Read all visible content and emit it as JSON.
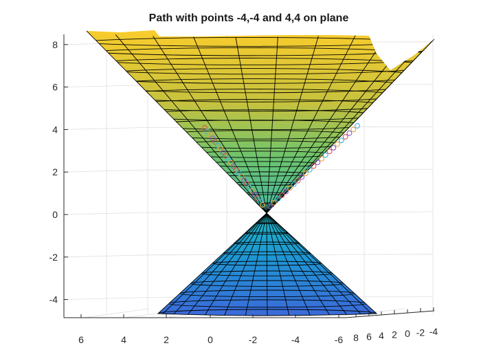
{
  "chart_data": {
    "type": "surface",
    "title": "Path with points -4,-4 and 4,4 on plane",
    "zlim": [
      -5,
      8.5
    ],
    "z_ticks": [
      "-4",
      "-2",
      "0",
      "2",
      "4",
      "6",
      "8"
    ],
    "x_ticks": [
      "6",
      "4",
      "2",
      "0",
      "-2",
      "-4",
      "-6"
    ],
    "y_ticks": [
      "8",
      "6",
      "4",
      "2",
      "0",
      "-2",
      "-4"
    ],
    "grid": true,
    "colormap": [
      "#3a63d8",
      "#15a9c8",
      "#5cc07f",
      "#c5c13a",
      "#f7cd2b"
    ],
    "surfaces": [
      {
        "name": "upper-cone",
        "equation": "z = sqrt(x^2 + y^2)"
      },
      {
        "name": "lower-cone",
        "equation": "z = -sqrt(x^2 + y^2)"
      }
    ],
    "path_points": [
      [
        -4,
        -4
      ],
      [
        4,
        4
      ]
    ]
  }
}
